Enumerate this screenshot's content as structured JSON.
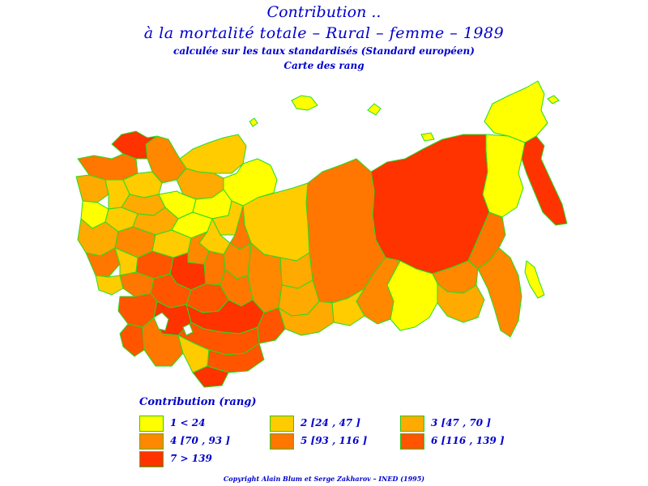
{
  "title": {
    "line1": "Contribution ..",
    "line2": "à la mortalité totale  –  Rural  –  femme  –  1989",
    "line3": "calculée sur les taux standardisés (Standard européen)",
    "line4": "Carte des rang"
  },
  "colors": {
    "border": "#22dd22",
    "class1": "#ffff00",
    "class2": "#ffcc00",
    "class3": "#ffaa00",
    "class4": "#ff8800",
    "class5": "#ff7700",
    "class6": "#ff5500",
    "class7": "#ff3300"
  },
  "legend": {
    "title": "Contribution (rang)",
    "items": [
      {
        "label": "1  <  24",
        "color": "#ffff00"
      },
      {
        "label": "2 [24 ,  47 ]",
        "color": "#ffcc00"
      },
      {
        "label": "3 [47 ,  70 ]",
        "color": "#ffaa00"
      },
      {
        "label": "4 [70 ,  93 ]",
        "color": "#ff8800"
      },
      {
        "label": "5 [93 ,  116 ]",
        "color": "#ff7700"
      },
      {
        "label": "6 [116 ,  139 ]",
        "color": "#ff5500"
      },
      {
        "label": "7  >  139",
        "color": "#ff3300"
      }
    ]
  },
  "copyright": "Copyright  Alain  Blum et  Serge  Zakharov  –  INED (1995)"
}
